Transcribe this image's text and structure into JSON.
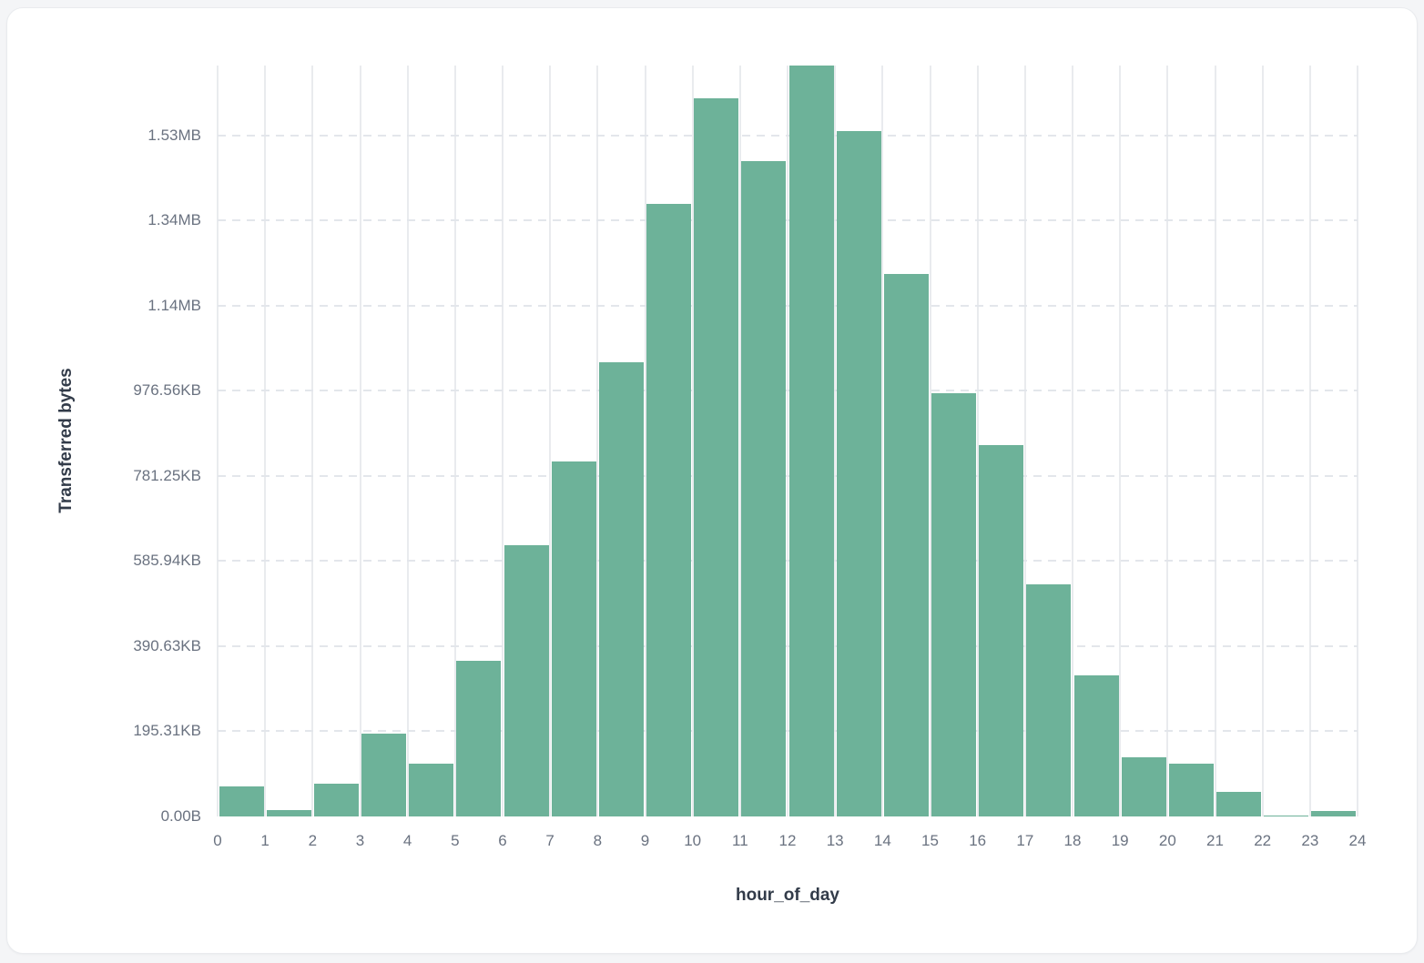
{
  "chart_data": {
    "type": "bar",
    "title": "",
    "xlabel": "hour_of_day",
    "ylabel": "Transferred bytes",
    "categories": [
      0,
      1,
      2,
      3,
      4,
      5,
      6,
      7,
      8,
      9,
      10,
      11,
      12,
      13,
      14,
      15,
      16,
      17,
      18,
      19,
      20,
      21,
      22,
      23
    ],
    "values": [
      71000,
      16000,
      76000,
      195000,
      125000,
      366000,
      638000,
      834000,
      1066000,
      1440000,
      1688000,
      1540000,
      1764000,
      1611000,
      1275000,
      995000,
      873000,
      545000,
      332000,
      139000,
      123000,
      57000,
      3000,
      12000
    ],
    "values_unit": "bytes",
    "x_tick_labels": [
      "0",
      "1",
      "2",
      "3",
      "4",
      "5",
      "6",
      "7",
      "8",
      "9",
      "10",
      "11",
      "12",
      "13",
      "14",
      "15",
      "16",
      "17",
      "18",
      "19",
      "20",
      "21",
      "22",
      "23",
      "24"
    ],
    "y_ticks": [
      {
        "value": 0,
        "label": "0.00B"
      },
      {
        "value": 200000,
        "label": "195.31KB"
      },
      {
        "value": 400000,
        "label": "390.63KB"
      },
      {
        "value": 600000,
        "label": "585.94KB"
      },
      {
        "value": 800000,
        "label": "781.25KB"
      },
      {
        "value": 1000000,
        "label": "976.56KB"
      },
      {
        "value": 1200000,
        "label": "1.14MB"
      },
      {
        "value": 1400000,
        "label": "1.34MB"
      },
      {
        "value": 1600000,
        "label": "1.53MB"
      }
    ],
    "ylim": [
      0,
      1764000
    ],
    "xlim": [
      0,
      24
    ],
    "bar_color": "#6db299",
    "grid": true,
    "legend_position": "none"
  }
}
